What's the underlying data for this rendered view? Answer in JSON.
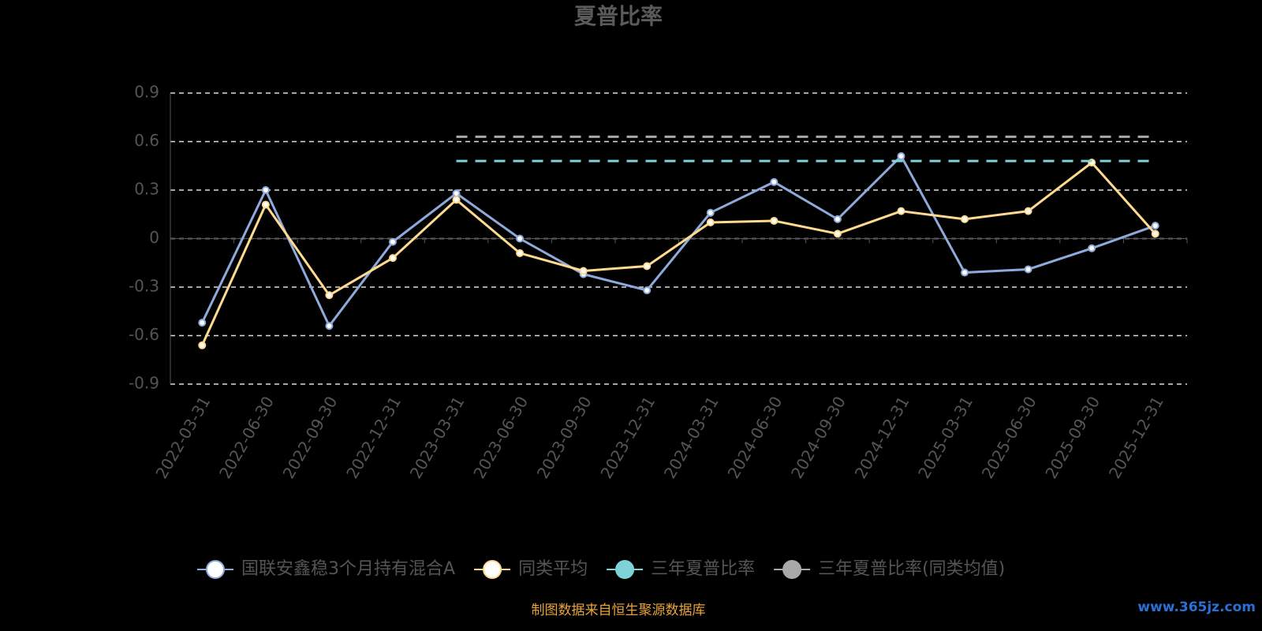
{
  "chart_data": {
    "type": "line",
    "title": "夏普比率",
    "categories": [
      "2022-03-31",
      "2022-06-30",
      "2022-09-30",
      "2022-12-31",
      "2023-03-31",
      "2023-06-30",
      "2023-09-30",
      "2023-12-31",
      "2024-03-31",
      "2024-06-30",
      "2024-09-30",
      "2024-12-31",
      "2025-03-31",
      "2025-06-30",
      "2025-09-30",
      "2025-12-31"
    ],
    "series": [
      {
        "name": "国联安鑫稳3个月持有混合A",
        "color": "#8eaadb",
        "dashed": false,
        "markers": true,
        "values": [
          -0.52,
          0.3,
          -0.54,
          -0.02,
          0.28,
          0.0,
          -0.22,
          -0.32,
          0.16,
          0.35,
          0.12,
          0.51,
          -0.21,
          -0.19,
          -0.06,
          0.08
        ]
      },
      {
        "name": "同类平均",
        "color": "#ffd98e",
        "dashed": false,
        "markers": true,
        "values": [
          -0.66,
          0.21,
          -0.35,
          -0.12,
          0.24,
          -0.09,
          -0.2,
          -0.17,
          0.1,
          0.11,
          0.03,
          0.17,
          0.12,
          0.17,
          0.47,
          0.03
        ]
      },
      {
        "name": "三年夏普比率",
        "color": "#7ed3d8",
        "dashed": true,
        "markers": false,
        "values": [
          null,
          null,
          null,
          null,
          0.48,
          0.48,
          0.48,
          0.48,
          0.48,
          0.48,
          0.48,
          0.48,
          0.48,
          0.48,
          0.48,
          0.48
        ]
      },
      {
        "name": "三年夏普比率(同类均值)",
        "color": "#a9a9a9",
        "dashed": true,
        "markers": false,
        "values": [
          null,
          null,
          null,
          null,
          0.63,
          0.63,
          0.63,
          0.63,
          0.63,
          0.63,
          0.63,
          0.63,
          0.63,
          0.63,
          0.63,
          0.63
        ]
      }
    ],
    "ylim": [
      -0.9,
      0.9
    ],
    "yticks": [
      -0.9,
      -0.6,
      -0.3,
      0,
      0.3,
      0.6,
      0.9
    ],
    "grid": true,
    "legend": "bottom",
    "source": "制图数据来自恒生聚源数据库",
    "watermark": "www.365jz.com"
  }
}
